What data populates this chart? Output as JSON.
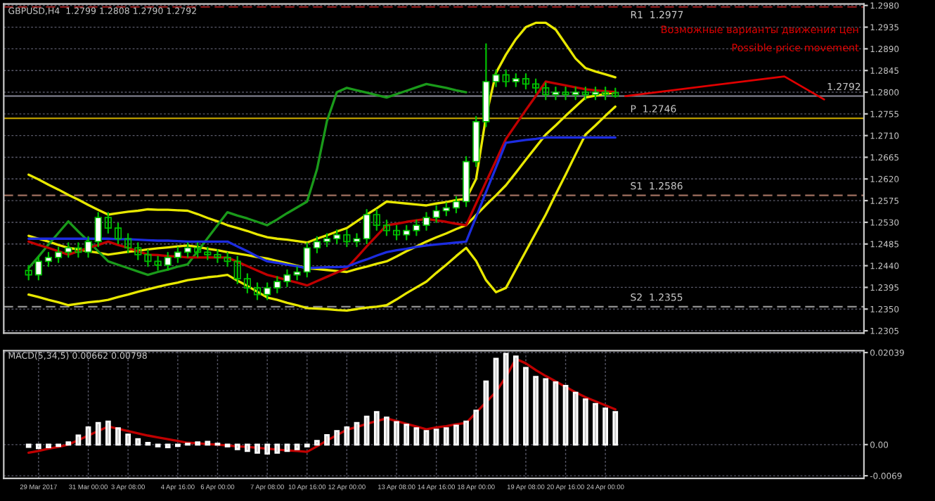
{
  "chart_data": [
    {
      "type": "candlestick",
      "title": "GBPUSD,H4  1.2799 1.2808 1.2790 1.2792",
      "grid": true,
      "categories": [
        null,
        null,
        null,
        null,
        null,
        null,
        null,
        null,
        null,
        null,
        null,
        null,
        null,
        null,
        null,
        null,
        null,
        null,
        null,
        null,
        null,
        null,
        null,
        null,
        null,
        null,
        null,
        null,
        null,
        null,
        null,
        null,
        null,
        null,
        null,
        null,
        null,
        null,
        null,
        null,
        null,
        null,
        null,
        null,
        null,
        null,
        null,
        null,
        null,
        null,
        null,
        null,
        null,
        null,
        null,
        null,
        null,
        null,
        null,
        null
      ],
      "ohlc": [
        [
          1.243,
          1.244,
          1.2411,
          1.2421
        ],
        [
          1.2421,
          1.2459,
          1.2411,
          1.2449
        ],
        [
          1.2449,
          1.2467,
          1.2439,
          1.2457
        ],
        [
          1.2457,
          1.2478,
          1.2447,
          1.2468
        ],
        [
          1.2468,
          1.2487,
          1.2458,
          1.2477
        ],
        [
          1.2477,
          1.2487,
          1.2458,
          1.2468
        ],
        [
          1.2468,
          1.25,
          1.2458,
          1.249
        ],
        [
          1.249,
          1.255,
          1.248,
          1.254
        ],
        [
          1.254,
          1.255,
          1.2508,
          1.2518
        ],
        [
          1.2518,
          1.2528,
          1.2486,
          1.2496
        ],
        [
          1.2496,
          1.2506,
          1.2467,
          1.2477
        ],
        [
          1.2477,
          1.2487,
          1.2453,
          1.2463
        ],
        [
          1.2463,
          1.2473,
          1.2439,
          1.2449
        ],
        [
          1.2449,
          1.2459,
          1.2431,
          1.2441
        ],
        [
          1.2441,
          1.2467,
          1.2431,
          1.2457
        ],
        [
          1.2457,
          1.2478,
          1.2447,
          1.2468
        ],
        [
          1.2468,
          1.2487,
          1.2458,
          1.2477
        ],
        [
          1.2477,
          1.2487,
          1.2458,
          1.2468
        ],
        [
          1.2468,
          1.2478,
          1.2453,
          1.2463
        ],
        [
          1.2463,
          1.2473,
          1.2447,
          1.2457
        ],
        [
          1.2457,
          1.2467,
          1.2439,
          1.2449
        ],
        [
          1.2449,
          1.2459,
          1.2403,
          1.2413
        ],
        [
          1.2413,
          1.2423,
          1.2384,
          1.2394
        ],
        [
          1.2394,
          1.2404,
          1.237,
          1.238
        ],
        [
          1.238,
          1.2404,
          1.237,
          1.2394
        ],
        [
          1.2394,
          1.2417,
          1.2384,
          1.2407
        ],
        [
          1.2407,
          1.2431,
          1.2397,
          1.2421
        ],
        [
          1.2421,
          1.2437,
          1.2411,
          1.2427
        ],
        [
          1.2427,
          1.2487,
          1.2417,
          1.2477
        ],
        [
          1.2477,
          1.25,
          1.2467,
          1.249
        ],
        [
          1.249,
          1.2506,
          1.248,
          1.2496
        ],
        [
          1.2496,
          1.2514,
          1.2486,
          1.2504
        ],
        [
          1.2504,
          1.2514,
          1.248,
          1.249
        ],
        [
          1.249,
          1.2506,
          1.248,
          1.2496
        ],
        [
          1.2496,
          1.2556,
          1.2486,
          1.2546
        ],
        [
          1.2546,
          1.2556,
          1.2514,
          1.2524
        ],
        [
          1.2524,
          1.2534,
          1.2503,
          1.2513
        ],
        [
          1.2513,
          1.2523,
          1.2494,
          1.2504
        ],
        [
          1.2504,
          1.2523,
          1.2494,
          1.2513
        ],
        [
          1.2513,
          1.2534,
          1.2503,
          1.2524
        ],
        [
          1.2524,
          1.255,
          1.2514,
          1.254
        ],
        [
          1.254,
          1.2564,
          1.253,
          1.2554
        ],
        [
          1.2554,
          1.257,
          1.2544,
          1.256
        ],
        [
          1.256,
          1.2583,
          1.255,
          1.2573
        ],
        [
          1.2573,
          1.2666,
          1.2563,
          1.2656
        ],
        [
          1.2656,
          1.2749,
          1.2646,
          1.2739
        ],
        [
          1.2739,
          1.29,
          1.2729,
          1.2822
        ],
        [
          1.2822,
          1.2846,
          1.2812,
          1.2836
        ],
        [
          1.2836,
          1.2846,
          1.2812,
          1.2822
        ],
        [
          1.2822,
          1.2838,
          1.2812,
          1.2828
        ],
        [
          1.2828,
          1.2838,
          1.2807,
          1.2817
        ],
        [
          1.2817,
          1.2827,
          1.2799,
          1.2809
        ],
        [
          1.2809,
          1.2819,
          1.2785,
          1.2795
        ],
        [
          1.2795,
          1.281,
          1.2785,
          1.28
        ],
        [
          1.28,
          1.281,
          1.2785,
          1.2795
        ],
        [
          1.2795,
          1.281,
          1.2785,
          1.28
        ],
        [
          1.28,
          1.281,
          1.2785,
          1.2795
        ],
        [
          1.2795,
          1.281,
          1.2785,
          1.28
        ],
        [
          1.28,
          1.281,
          1.2785,
          1.2795
        ],
        [
          1.2799,
          1.2808,
          1.279,
          1.2792
        ]
      ],
      "series": [
        {
          "type": "line",
          "color": "#e8e800",
          "values": [
            1.2629,
            1.2619,
            1.2608,
            1.2598,
            1.2587,
            1.2577,
            1.2566,
            1.2556,
            1.2546,
            1.2549,
            1.2552,
            1.2554,
            1.2557,
            1.2556,
            1.2556,
            1.2555,
            1.2554,
            1.2547,
            1.2539,
            1.2532,
            1.2524,
            1.2518,
            1.2512,
            1.2505,
            1.2499,
            1.2496,
            1.2494,
            1.2491,
            1.2488,
            1.2496,
            1.2503,
            1.2511,
            1.2518,
            1.2532,
            1.2546,
            1.2559,
            1.2573,
            1.2571,
            1.2569,
            1.2567,
            1.2565,
            1.2569,
            1.2572,
            1.2576,
            1.2579,
            1.262,
            1.275,
            1.284,
            1.2878,
            1.291,
            1.2935,
            1.2944,
            1.2944,
            1.293,
            1.29,
            1.287,
            1.285,
            1.2843,
            1.2837,
            1.2831
          ]
        },
        {
          "type": "line",
          "color": "#e8e800",
          "values": [
            1.2502,
            1.2496,
            1.249,
            1.2483,
            1.2477,
            1.2474,
            1.247,
            1.2467,
            1.2463,
            1.2466,
            1.2469,
            1.2471,
            1.2474,
            1.2476,
            1.2478,
            1.248,
            1.2482,
            1.2479,
            1.2475,
            1.2472,
            1.2468,
            1.2465,
            1.2462,
            1.2458,
            1.2455,
            1.245,
            1.2445,
            1.244,
            1.2435,
            1.2433,
            1.2431,
            1.2429,
            1.2427,
            1.2433,
            1.2438,
            1.2444,
            1.2449,
            1.2459,
            1.247,
            1.248,
            1.249,
            1.2499,
            1.2507,
            1.2516,
            1.2524,
            1.2545,
            1.2566,
            1.2586,
            1.2607,
            1.2633,
            1.266,
            1.2686,
            1.2712,
            1.2731,
            1.2751,
            1.277,
            1.2789,
            1.2793,
            1.2796,
            1.28
          ]
        },
        {
          "type": "line",
          "color": "#e8e800",
          "values": [
            1.238,
            1.2375,
            1.2369,
            1.2364,
            1.2358,
            1.2361,
            1.2364,
            1.2366,
            1.2369,
            1.2375,
            1.238,
            1.2386,
            1.2391,
            1.2396,
            1.2401,
            1.2405,
            1.241,
            1.2413,
            1.2416,
            1.2418,
            1.2421,
            1.2409,
            1.2398,
            1.2386,
            1.2374,
            1.2369,
            1.2363,
            1.2358,
            1.2352,
            1.2351,
            1.235,
            1.2348,
            1.2347,
            1.235,
            1.2353,
            1.2355,
            1.2358,
            1.237,
            1.2383,
            1.2395,
            1.2407,
            1.2425,
            1.2442,
            1.246,
            1.2477,
            1.245,
            1.241,
            1.2385,
            1.2394,
            1.2432,
            1.247,
            1.2508,
            1.2546,
            1.2588,
            1.2629,
            1.2671,
            1.2712,
            1.2731,
            1.2751,
            1.277
          ]
        },
        {
          "type": "line",
          "color": "#1a9a1a",
          "values": [
            1.2435,
            1.2459,
            1.2484,
            1.2508,
            1.2532,
            1.2511,
            1.2491,
            1.247,
            1.2449,
            1.2442,
            1.2435,
            1.2428,
            1.2421,
            1.2427,
            1.2432,
            1.2438,
            1.2443,
            1.247,
            1.2497,
            1.2524,
            1.2551,
            1.2544,
            1.2538,
            1.2531,
            1.2524,
            1.2536,
            1.2549,
            1.2561,
            1.2573,
            1.264,
            1.274,
            1.28,
            1.2809,
            1.2804,
            1.2799,
            1.2794,
            1.2789,
            1.2796,
            1.2803,
            1.281,
            1.2817,
            1.2813,
            1.2809,
            1.2804,
            1.28,
            null,
            null,
            null,
            null,
            null,
            null,
            null,
            null,
            null,
            null,
            null,
            null,
            null,
            null,
            null
          ]
        },
        {
          "type": "line",
          "color": "#c00000",
          "values": [
            1.249,
            1.2483,
            1.2477,
            1.247,
            1.2463,
            1.247,
            1.2477,
            1.2483,
            1.249,
            1.2483,
            1.2477,
            1.247,
            1.2463,
            1.2462,
            1.246,
            1.2459,
            1.2457,
            1.2457,
            1.2457,
            1.2457,
            1.2457,
            1.2448,
            1.2439,
            1.243,
            1.2421,
            1.2416,
            1.241,
            1.2405,
            1.2399,
            1.2408,
            1.2417,
            1.2426,
            1.2435,
            1.2457,
            1.248,
            1.2502,
            1.2524,
            1.2527,
            1.2531,
            1.2534,
            1.2537,
            1.2534,
            1.2531,
            1.2527,
            1.2524,
            1.2569,
            1.2614,
            1.2658,
            1.2703,
            1.2733,
            1.2763,
            1.2792,
            1.2822,
            1.2818,
            1.2814,
            1.281,
            1.2806,
            1.2804,
            1.2802,
            1.28
          ]
        },
        {
          "type": "line",
          "color": "#1c2ce0",
          "values": [
            1.2496,
            1.2496,
            1.2496,
            1.2496,
            1.2496,
            1.2496,
            1.2496,
            1.2496,
            1.2496,
            1.2495,
            1.2495,
            1.2494,
            1.2493,
            1.2492,
            1.2492,
            1.2491,
            1.249,
            1.249,
            1.249,
            1.249,
            1.249,
            1.248,
            1.247,
            1.2459,
            1.2449,
            1.2446,
            1.2442,
            1.2439,
            1.2435,
            1.2436,
            1.2437,
            1.2437,
            1.2438,
            1.2446,
            1.2453,
            1.2461,
            1.2468,
            1.2472,
            1.2475,
            1.2479,
            1.2482,
            1.2484,
            1.2486,
            1.2488,
            1.249,
            1.2541,
            1.2593,
            1.2644,
            1.2695,
            1.2698,
            1.2701,
            1.2703,
            1.2706,
            1.2706,
            1.2706,
            1.2706,
            1.2706,
            1.2706,
            1.2706,
            1.2706
          ]
        }
      ],
      "ylim": [
        1.23,
        1.2983
      ],
      "yticks": [
        {
          "value": 1.298,
          "label": "1.2980"
        },
        1.2935,
        {
          "value": 1.289,
          "label": "1.2890"
        },
        1.2845,
        {
          "value": 1.28,
          "label": "1.2800"
        },
        1.2755,
        {
          "value": 1.271,
          "label": "1.2710"
        },
        1.2665,
        {
          "value": 1.262,
          "label": "1.2620"
        },
        1.2575,
        {
          "value": 1.253,
          "label": "1.2530"
        },
        1.2485,
        {
          "value": 1.244,
          "label": "1.2440"
        },
        1.2395,
        {
          "value": 1.235,
          "label": "1.2350"
        },
        1.2305
      ],
      "ref_lines": [
        {
          "axis": "y",
          "value": 1.2977,
          "label": "R1  1.2977",
          "color": "#8b1a1a",
          "line_style": "dashed"
        },
        {
          "axis": "y",
          "value": 1.2792,
          "label": "1.2792",
          "color": "#8a8a9a",
          "line_style": "solid"
        },
        {
          "axis": "y",
          "value": 1.2746,
          "label": "P  1.2746",
          "color": "#b89a00",
          "line_style": "solid"
        },
        {
          "axis": "y",
          "value": 1.2586,
          "label": "S1  1.2586",
          "color": "#a07060",
          "line_style": "dashed"
        },
        {
          "axis": "y",
          "value": 1.2355,
          "label": "S2  1.2355",
          "color": "#909090",
          "line_style": "dashed"
        }
      ],
      "annotations": [
        "Возможные варианты движения цен",
        "Possible price movement"
      ]
    },
    {
      "type": "bar",
      "title": "MACD(5,34,5) 0.00662 0.00798",
      "grid": true,
      "categories": [
        null,
        "29 Mar 2017",
        null,
        null,
        null,
        null,
        "31 Mar 00:00",
        null,
        null,
        null,
        "3 Apr 08:00",
        null,
        null,
        null,
        null,
        "4 Apr 16:00",
        null,
        null,
        null,
        "6 Apr 00:00",
        null,
        null,
        null,
        null,
        "7 Apr 08:00",
        null,
        null,
        null,
        "10 Apr 16:00",
        null,
        null,
        null,
        "12 Apr 00:00",
        null,
        null,
        null,
        null,
        "13 Apr 08:00",
        null,
        null,
        null,
        "14 Apr 16:00",
        null,
        null,
        null,
        "18 Apr 00:00",
        null,
        null,
        null,
        null,
        "19 Apr 08:00",
        null,
        null,
        null,
        "20 Apr 16:00",
        null,
        null,
        null,
        "24 Apr 00:00",
        null
      ],
      "series": [
        {
          "type": "bar",
          "color": "#c8c8c8",
          "values": [
            -0.0005,
            -0.0008,
            -0.0006,
            -0.0003,
            0.0005,
            0.002,
            0.0038,
            0.0048,
            0.0051,
            0.0036,
            0.0022,
            0.0012,
            0.0004,
            -0.0004,
            -0.0006,
            -0.0003,
            0.0002,
            0.0005,
            0.0006,
            0.0002,
            -0.0004,
            -0.001,
            -0.0014,
            -0.0018,
            -0.002,
            -0.0018,
            -0.0014,
            -0.001,
            -0.0004,
            0.0008,
            0.0021,
            0.003,
            0.0038,
            0.0048,
            0.0062,
            0.0072,
            0.006,
            0.005,
            0.0044,
            0.0036,
            0.003,
            0.0033,
            0.0036,
            0.0042,
            0.0051,
            0.0075,
            0.014,
            0.019,
            0.0201,
            0.0195,
            0.017,
            0.015,
            0.0145,
            0.0138,
            0.013,
            0.0115,
            0.01,
            0.009,
            0.008,
            0.0072
          ]
        },
        {
          "type": "line",
          "color": "#c00000",
          "values": [
            -0.0018,
            -0.0014,
            -0.0009,
            -0.0005,
            0.0,
            0.001,
            0.002,
            0.003,
            0.004,
            0.0035,
            0.003,
            0.0025,
            0.002,
            0.0016,
            0.0012,
            0.0008,
            0.0004,
            0.0003,
            0.0001,
            0.0,
            -0.0002,
            -0.0004,
            -0.0005,
            -0.0007,
            -0.0009,
            -0.0011,
            -0.0013,
            -0.0014,
            -0.0016,
            -0.0004,
            0.0009,
            0.0021,
            0.0033,
            0.0039,
            0.0046,
            0.0052,
            0.0058,
            0.0052,
            0.0046,
            0.004,
            0.0034,
            0.0038,
            0.0041,
            0.0045,
            0.0048,
            0.0071,
            0.0094,
            0.0117,
            0.015,
            0.019,
            0.018,
            0.0165,
            0.0152,
            0.014,
            0.0128,
            0.0116,
            0.0105,
            0.0096,
            0.0087,
            0.0078
          ]
        }
      ],
      "ylim": [
        -0.0075,
        0.0208
      ],
      "yticks": [
        {
          "value": 0.02039,
          "label": "0.02039"
        },
        {
          "value": 0,
          "label": "0.00"
        },
        {
          "value": -0.0069,
          "label": "-0.0069"
        }
      ]
    }
  ]
}
